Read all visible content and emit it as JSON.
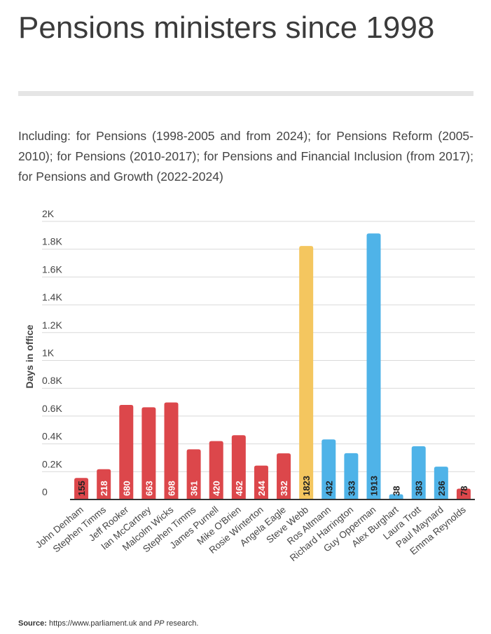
{
  "title": "Pensions ministers since 1998",
  "subtitle": "Including: for Pensions (1998-2005 and from 2024); for Pensions Reform (2005-2010); for Pensions (2010-2017); for Pensions and Financial Inclusion (from 2017); for Pensions and Growth (2022-2024)",
  "source": {
    "label": "Source:",
    "text_before": "https://www.parliament.uk and ",
    "text_italic": "PP",
    "text_after": " research."
  },
  "colors": {
    "red": "#dc474b",
    "yellow": "#f4c65f",
    "blue": "#4fb3e8"
  },
  "chart_data": {
    "type": "bar",
    "ylabel": "Days in office",
    "ylim": [
      0,
      2000
    ],
    "yticks": [
      0,
      200,
      400,
      600,
      800,
      1000,
      1200,
      1400,
      1600,
      1800,
      2000
    ],
    "ytick_labels": [
      "0",
      "0.2K",
      "0.4K",
      "0.6K",
      "0.8K",
      "1K",
      "1.2K",
      "1.4K",
      "1.6K",
      "1.8K",
      "2K"
    ],
    "grid": true,
    "categories": [
      "John Denham",
      "Stephen Timms",
      "Jeff Rooker",
      "Ian McCartney",
      "Malcolm Wicks",
      "Stephen Timms",
      "James Purnell",
      "Mike O'Brien",
      "Rosie Winterton",
      "Angela Eagle",
      "Steve Webb",
      "Ros Altmann",
      "Richard Harrington",
      "Guy Opperman",
      "Alex Burghart",
      "Laura Trott",
      "Paul Maynard",
      "Emma Reynolds"
    ],
    "values": [
      155,
      218,
      680,
      663,
      698,
      361,
      420,
      462,
      244,
      332,
      1823,
      432,
      333,
      1913,
      38,
      383,
      236,
      78
    ],
    "bar_colors": [
      "red",
      "red",
      "red",
      "red",
      "red",
      "red",
      "red",
      "red",
      "red",
      "red",
      "yellow",
      "blue",
      "blue",
      "blue",
      "blue",
      "blue",
      "blue",
      "red"
    ]
  }
}
